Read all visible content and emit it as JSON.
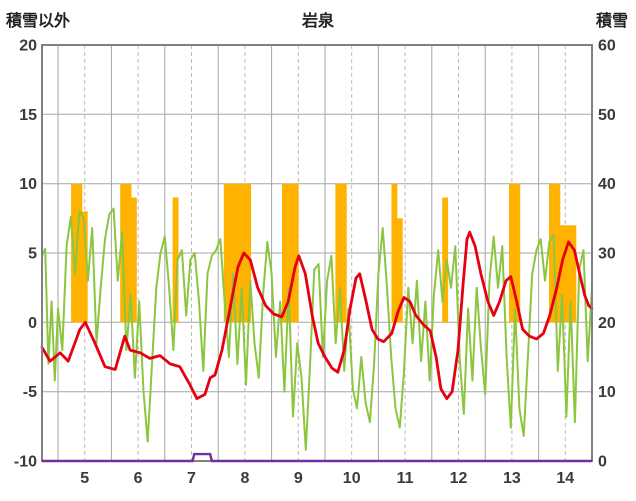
{
  "header": {
    "left_axis_title": "積雪以外",
    "title": "岩泉",
    "right_axis_title": "積雪"
  },
  "chart_data": {
    "type": "line",
    "title": "岩泉",
    "station": "岩泉",
    "x_axis": {
      "domain": [
        4.7,
        15.0
      ],
      "tick_labels": [
        "5",
        "6",
        "7",
        "8",
        "9",
        "10",
        "11",
        "12",
        "13",
        "14"
      ],
      "tick_positions": [
        5.5,
        6.5,
        7.5,
        8.5,
        9.5,
        10.5,
        11.5,
        12.5,
        13.5,
        14.5
      ],
      "solid_gridlines": [
        5,
        6,
        7,
        8,
        9,
        10,
        11,
        12,
        13,
        14
      ],
      "dashed_gridlines": [
        5.5,
        6.5,
        7.5,
        8.5,
        9.5,
        10.5,
        11.5,
        12.5,
        13.5,
        14.5
      ]
    },
    "left_axis": {
      "title": "積雪以外",
      "range": [
        -10,
        20
      ],
      "ticks": [
        20,
        15,
        10,
        5,
        0,
        -5,
        -10
      ],
      "gridlines": [
        15,
        10,
        5,
        0,
        -5
      ]
    },
    "right_axis": {
      "title": "積雪",
      "range": [
        0,
        60
      ],
      "ticks": [
        60,
        50,
        40,
        30,
        20,
        10,
        0
      ]
    },
    "colors": {
      "bars": "#FFB300",
      "green": "#8CC63F",
      "red": "#E60012",
      "purple": "#7030A0",
      "grid": "#A6A6A6",
      "grid_dashed": "#BBBBBB",
      "border": "#808080",
      "text": "#3A3A3A"
    },
    "series": [
      {
        "name": "orange_bars",
        "type": "bar",
        "axis": "left",
        "color_key": "bars",
        "bar_width_days": 0.11,
        "points": [
          [
            5.3,
            10
          ],
          [
            5.4,
            10
          ],
          [
            5.5,
            8
          ],
          [
            6.22,
            10
          ],
          [
            6.32,
            10
          ],
          [
            6.42,
            9
          ],
          [
            7.2,
            9
          ],
          [
            8.16,
            10
          ],
          [
            8.26,
            10
          ],
          [
            8.36,
            10
          ],
          [
            8.46,
            10
          ],
          [
            8.56,
            10
          ],
          [
            9.25,
            10
          ],
          [
            9.35,
            10
          ],
          [
            9.45,
            10
          ],
          [
            10.25,
            10
          ],
          [
            10.35,
            10
          ],
          [
            11.3,
            10
          ],
          [
            11.4,
            7.5
          ],
          [
            12.25,
            9
          ],
          [
            13.5,
            10
          ],
          [
            13.6,
            10
          ],
          [
            14.25,
            10
          ],
          [
            14.35,
            10
          ],
          [
            14.45,
            7
          ],
          [
            14.55,
            7
          ],
          [
            14.65,
            7
          ]
        ]
      },
      {
        "name": "green_line",
        "type": "line",
        "axis": "left",
        "color_key": "green",
        "stroke_width": 2,
        "points": [
          [
            4.7,
            4.8
          ],
          [
            4.76,
            5.3
          ],
          [
            4.82,
            -3.0
          ],
          [
            4.88,
            1.5
          ],
          [
            4.94,
            -4.2
          ],
          [
            5.0,
            1.0
          ],
          [
            5.08,
            -2.0
          ],
          [
            5.16,
            5.5
          ],
          [
            5.24,
            7.6
          ],
          [
            5.32,
            3.5
          ],
          [
            5.4,
            8.0
          ],
          [
            5.48,
            7.5
          ],
          [
            5.56,
            3.0
          ],
          [
            5.64,
            6.8
          ],
          [
            5.72,
            -1.5
          ],
          [
            5.8,
            2.5
          ],
          [
            5.88,
            6.0
          ],
          [
            5.96,
            7.8
          ],
          [
            6.04,
            8.2
          ],
          [
            6.12,
            3.0
          ],
          [
            6.2,
            6.5
          ],
          [
            6.28,
            -2.0
          ],
          [
            6.36,
            2.0
          ],
          [
            6.44,
            -4.0
          ],
          [
            6.52,
            1.5
          ],
          [
            6.6,
            -5.0
          ],
          [
            6.68,
            -8.6
          ],
          [
            6.76,
            -3.0
          ],
          [
            6.84,
            2.5
          ],
          [
            6.92,
            5.0
          ],
          [
            7.0,
            6.2
          ],
          [
            7.08,
            2.5
          ],
          [
            7.16,
            -2.0
          ],
          [
            7.24,
            4.5
          ],
          [
            7.32,
            5.2
          ],
          [
            7.4,
            0.5
          ],
          [
            7.48,
            4.5
          ],
          [
            7.56,
            5.0
          ],
          [
            7.64,
            1.5
          ],
          [
            7.72,
            -3.5
          ],
          [
            7.8,
            3.5
          ],
          [
            7.88,
            4.8
          ],
          [
            7.96,
            5.2
          ],
          [
            8.04,
            6.0
          ],
          [
            8.12,
            1.5
          ],
          [
            8.2,
            -2.5
          ],
          [
            8.28,
            3.5
          ],
          [
            8.36,
            -3.0
          ],
          [
            8.44,
            2.5
          ],
          [
            8.52,
            -4.5
          ],
          [
            8.6,
            3.0
          ],
          [
            8.68,
            -1.5
          ],
          [
            8.76,
            -4.0
          ],
          [
            8.84,
            2.0
          ],
          [
            8.92,
            5.8
          ],
          [
            9.0,
            3.5
          ],
          [
            9.08,
            -2.5
          ],
          [
            9.16,
            1.5
          ],
          [
            9.24,
            -5.0
          ],
          [
            9.32,
            2.5
          ],
          [
            9.4,
            -6.8
          ],
          [
            9.48,
            -1.5
          ],
          [
            9.56,
            -4.0
          ],
          [
            9.64,
            -9.2
          ],
          [
            9.72,
            -3.0
          ],
          [
            9.8,
            3.8
          ],
          [
            9.88,
            4.2
          ],
          [
            9.96,
            -2.5
          ],
          [
            10.04,
            3.0
          ],
          [
            10.12,
            4.8
          ],
          [
            10.2,
            -1.5
          ],
          [
            10.28,
            2.5
          ],
          [
            10.36,
            -3.5
          ],
          [
            10.44,
            1.0
          ],
          [
            10.52,
            -4.8
          ],
          [
            10.6,
            -6.2
          ],
          [
            10.68,
            -2.5
          ],
          [
            10.76,
            -5.8
          ],
          [
            10.84,
            -7.2
          ],
          [
            10.92,
            -3.0
          ],
          [
            11.0,
            3.5
          ],
          [
            11.08,
            6.8
          ],
          [
            11.16,
            2.5
          ],
          [
            11.24,
            -2.5
          ],
          [
            11.32,
            -6.2
          ],
          [
            11.4,
            -7.6
          ],
          [
            11.48,
            -3.5
          ],
          [
            11.56,
            2.5
          ],
          [
            11.64,
            -1.5
          ],
          [
            11.72,
            3.0
          ],
          [
            11.8,
            -2.8
          ],
          [
            11.88,
            1.5
          ],
          [
            11.96,
            -4.2
          ],
          [
            12.04,
            2.0
          ],
          [
            12.12,
            5.2
          ],
          [
            12.2,
            1.5
          ],
          [
            12.28,
            4.5
          ],
          [
            12.36,
            2.5
          ],
          [
            12.44,
            5.5
          ],
          [
            12.52,
            -2.5
          ],
          [
            12.6,
            -6.6
          ],
          [
            12.68,
            1.0
          ],
          [
            12.76,
            -4.2
          ],
          [
            12.84,
            2.5
          ],
          [
            12.92,
            -1.8
          ],
          [
            13.0,
            -5.2
          ],
          [
            13.08,
            3.0
          ],
          [
            13.16,
            6.2
          ],
          [
            13.24,
            2.5
          ],
          [
            13.32,
            5.5
          ],
          [
            13.4,
            -2.5
          ],
          [
            13.48,
            -7.6
          ],
          [
            13.56,
            1.0
          ],
          [
            13.64,
            -6.2
          ],
          [
            13.72,
            -8.2
          ],
          [
            13.8,
            -2.5
          ],
          [
            13.88,
            3.5
          ],
          [
            13.96,
            5.2
          ],
          [
            14.04,
            6.0
          ],
          [
            14.12,
            3.0
          ],
          [
            14.2,
            5.8
          ],
          [
            14.28,
            6.3
          ],
          [
            14.36,
            -3.5
          ],
          [
            14.44,
            2.0
          ],
          [
            14.52,
            -6.8
          ],
          [
            14.6,
            1.5
          ],
          [
            14.68,
            -7.2
          ],
          [
            14.76,
            3.8
          ],
          [
            14.84,
            5.2
          ],
          [
            14.92,
            -2.8
          ],
          [
            15.0,
            2.5
          ]
        ]
      },
      {
        "name": "red_line",
        "type": "line",
        "axis": "left",
        "color_key": "red",
        "stroke_width": 2.8,
        "points": [
          [
            4.7,
            -1.8
          ],
          [
            4.85,
            -2.8
          ],
          [
            5.04,
            -2.2
          ],
          [
            5.19,
            -2.8
          ],
          [
            5.41,
            -0.5
          ],
          [
            5.51,
            0.0
          ],
          [
            5.69,
            -1.5
          ],
          [
            5.88,
            -3.2
          ],
          [
            6.07,
            -3.4
          ],
          [
            6.25,
            -1.0
          ],
          [
            6.35,
            -2.0
          ],
          [
            6.54,
            -2.2
          ],
          [
            6.72,
            -2.6
          ],
          [
            6.91,
            -2.4
          ],
          [
            7.1,
            -3.0
          ],
          [
            7.28,
            -3.2
          ],
          [
            7.47,
            -4.5
          ],
          [
            7.6,
            -5.5
          ],
          [
            7.75,
            -5.2
          ],
          [
            7.85,
            -4.0
          ],
          [
            7.94,
            -3.8
          ],
          [
            8.07,
            -2.0
          ],
          [
            8.22,
            1.0
          ],
          [
            8.37,
            4.0
          ],
          [
            8.48,
            5.0
          ],
          [
            8.6,
            4.5
          ],
          [
            8.74,
            2.5
          ],
          [
            8.89,
            1.2
          ],
          [
            9.04,
            0.6
          ],
          [
            9.19,
            0.4
          ],
          [
            9.31,
            1.5
          ],
          [
            9.44,
            4.0
          ],
          [
            9.51,
            4.8
          ],
          [
            9.63,
            3.5
          ],
          [
            9.76,
            0.5
          ],
          [
            9.87,
            -1.5
          ],
          [
            10.0,
            -2.5
          ],
          [
            10.13,
            -3.3
          ],
          [
            10.24,
            -3.6
          ],
          [
            10.36,
            -2.0
          ],
          [
            10.47,
            1.0
          ],
          [
            10.58,
            3.2
          ],
          [
            10.65,
            3.5
          ],
          [
            10.77,
            1.5
          ],
          [
            10.88,
            -0.5
          ],
          [
            10.99,
            -1.2
          ],
          [
            11.1,
            -1.4
          ],
          [
            11.25,
            -0.8
          ],
          [
            11.37,
            0.8
          ],
          [
            11.48,
            1.8
          ],
          [
            11.59,
            1.5
          ],
          [
            11.7,
            0.5
          ],
          [
            11.85,
            -0.2
          ],
          [
            11.97,
            -0.6
          ],
          [
            12.08,
            -2.5
          ],
          [
            12.17,
            -4.8
          ],
          [
            12.28,
            -5.5
          ],
          [
            12.38,
            -5.0
          ],
          [
            12.49,
            -2.0
          ],
          [
            12.58,
            2.5
          ],
          [
            12.66,
            6.0
          ],
          [
            12.71,
            6.5
          ],
          [
            12.81,
            5.5
          ],
          [
            12.92,
            3.5
          ],
          [
            13.05,
            1.5
          ],
          [
            13.16,
            0.5
          ],
          [
            13.27,
            1.5
          ],
          [
            13.39,
            3.0
          ],
          [
            13.48,
            3.3
          ],
          [
            13.59,
            1.5
          ],
          [
            13.7,
            -0.5
          ],
          [
            13.83,
            -1.0
          ],
          [
            13.96,
            -1.2
          ],
          [
            14.09,
            -0.8
          ],
          [
            14.21,
            0.5
          ],
          [
            14.34,
            2.5
          ],
          [
            14.45,
            4.5
          ],
          [
            14.56,
            5.8
          ],
          [
            14.67,
            5.2
          ],
          [
            14.77,
            3.5
          ],
          [
            14.86,
            2.0
          ],
          [
            14.94,
            1.2
          ],
          [
            15.0,
            1.0
          ]
        ]
      },
      {
        "name": "purple_snow_depth_line",
        "type": "line",
        "axis": "right",
        "color_key": "purple",
        "stroke_width": 2.4,
        "points": [
          [
            4.7,
            0
          ],
          [
            7.52,
            0
          ],
          [
            7.55,
            1
          ],
          [
            7.85,
            1
          ],
          [
            7.88,
            0
          ],
          [
            15.0,
            0
          ]
        ]
      }
    ]
  }
}
